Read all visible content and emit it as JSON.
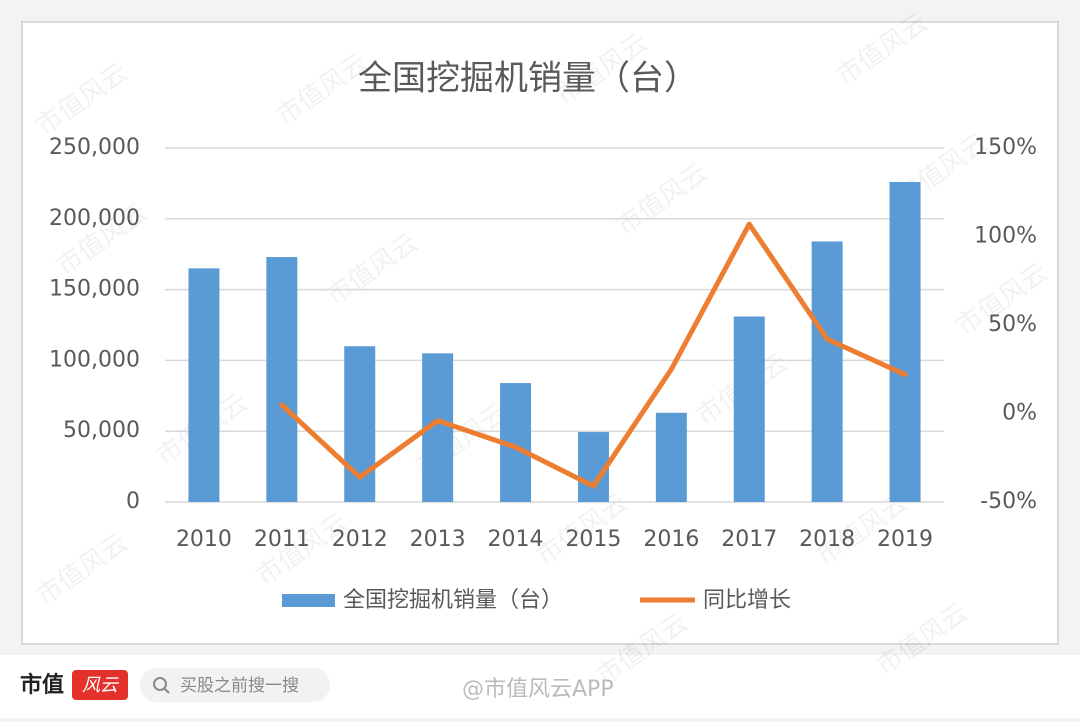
{
  "chart_data": {
    "type": "bar-line",
    "title": "全国挖掘机销量（台）",
    "categories": [
      "2010",
      "2011",
      "2012",
      "2013",
      "2014",
      "2015",
      "2016",
      "2017",
      "2018",
      "2019"
    ],
    "series": [
      {
        "name": "全国挖掘机销量（台）",
        "type": "bar",
        "color": "#5b9bd5",
        "values": [
          165000,
          173000,
          110000,
          105000,
          84000,
          49400,
          63000,
          131000,
          184000,
          226000
        ]
      },
      {
        "name": "同比增长",
        "type": "line",
        "color": "#ed7d31",
        "axis": "y2",
        "values": [
          null,
          4.8,
          -36,
          -4,
          -19,
          -41,
          25,
          107,
          42,
          22
        ]
      }
    ],
    "ylim": [
      0,
      250000
    ],
    "yticks": [
      0,
      {
        "value": 50000,
        "label": "50,000"
      },
      {
        "value": 100000,
        "label": "100,000"
      },
      {
        "value": 150000,
        "label": "150,000"
      },
      {
        "value": 200000,
        "label": "200,000"
      },
      {
        "value": 250000,
        "label": "250,000"
      }
    ],
    "y2lim": [
      -50,
      150
    ],
    "y2ticks": [
      {
        "value": -50,
        "label": "-50%"
      },
      {
        "value": 0,
        "label": "0%"
      },
      {
        "value": 50,
        "label": "50%"
      },
      {
        "value": 100,
        "label": "100%"
      },
      {
        "value": 150,
        "label": "150%"
      }
    ],
    "grid": true,
    "legend": "bottom"
  },
  "footer": {
    "brand": "市值",
    "logo": "风云",
    "search": "买股之前搜一搜",
    "credit": "@市值风云APP",
    "watermark": "市值风云"
  }
}
